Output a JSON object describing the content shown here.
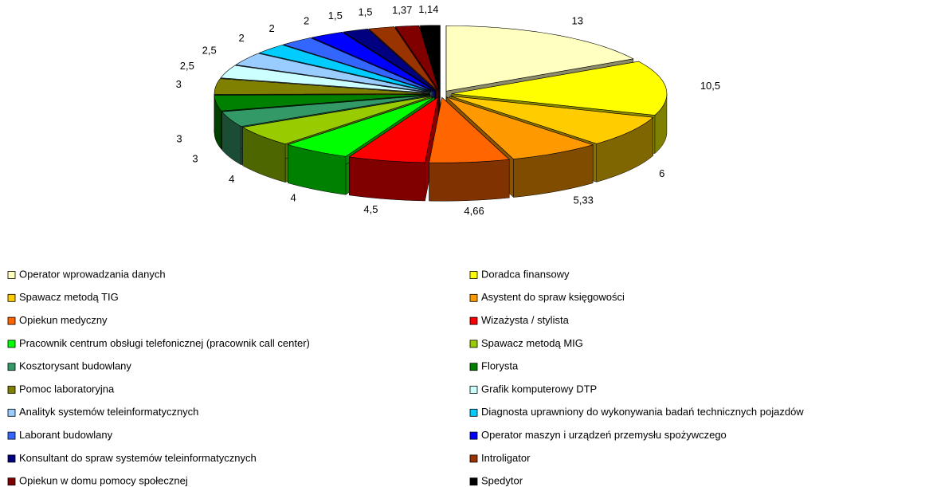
{
  "chart_data": {
    "type": "pie",
    "categories": [
      "Operator wprowadzania danych",
      "Doradca finansowy",
      "Spawacz metodą TIG",
      "Asystent do spraw księgowości",
      "Opiekun medyczny",
      "Wizażysta / stylista",
      "Pracownik centrum obsługi telefonicznej (pracownik call center)",
      "Spawacz metodą MIG",
      "Kosztorysant budowlany",
      "Florysta",
      "Pomoc laboratoryjna",
      "Grafik komputerowy DTP",
      "Analityk systemów teleinformatycznych",
      "Diagnosta uprawniony do wykonywania badań technicznych pojazdów",
      "Laborant budowlany",
      "Operator maszyn i urządzeń przemysłu spożywczego",
      "Konsultant do spraw systemów teleinformatycznych",
      "Introligator",
      "Opiekun w domu pomocy społecznej",
      "Spedytor"
    ],
    "values": [
      13,
      10.5,
      6,
      5.33,
      4.66,
      4.5,
      4,
      4,
      3,
      3,
      3,
      2.5,
      2.5,
      2,
      2,
      2,
      1.5,
      1.5,
      1.37,
      1.14
    ],
    "value_labels": [
      "13",
      "10,5",
      "6",
      "5,33",
      "4,66",
      "4,5",
      "4",
      "4",
      "3",
      "3",
      "3",
      "2,5",
      "2,5",
      "2",
      "2",
      "2",
      "1,5",
      "1,5",
      "1,37",
      "1,14"
    ],
    "colors": [
      "#ffffc0",
      "#ffff00",
      "#ffcc00",
      "#ff9900",
      "#ff6600",
      "#ff0000",
      "#00ff00",
      "#99cc00",
      "#339966",
      "#008000",
      "#808000",
      "#ccffff",
      "#99ccff",
      "#00ccff",
      "#3366ff",
      "#0000ff",
      "#000080",
      "#993300",
      "#800000",
      "#000000"
    ],
    "legend": "bottom"
  }
}
